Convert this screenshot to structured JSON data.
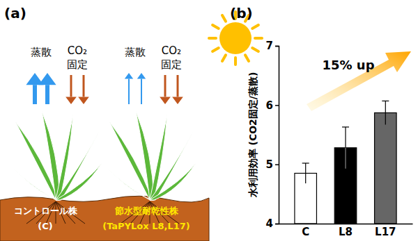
{
  "panel_labels": [
    "(a)",
    "(b)"
  ],
  "diagram": {
    "plants": [
      {
        "label": "コントロール株",
        "sublabel": "(C)",
        "transpiration": "蒸散",
        "co2": "CO₂",
        "fixation": "固定"
      },
      {
        "label": "節水型耐乾性株",
        "sublabel": "(TaPYLox L8,L17)",
        "transpiration": "蒸散",
        "co2": "CO₂",
        "fixation": "固定"
      }
    ]
  },
  "chart_data": {
    "type": "bar",
    "ylabel": "水利用効率 (CO2固定/蒸散)",
    "annotation": "15% up",
    "categories": [
      "C",
      "L8",
      "L17"
    ],
    "values": [
      4.85,
      5.28,
      5.87
    ],
    "errors": [
      0.17,
      0.35,
      0.2
    ],
    "colors": [
      "#ffffff",
      "#000000",
      "#666666"
    ],
    "ylim": [
      4,
      7
    ],
    "yticks": [
      4,
      5,
      6,
      7
    ],
    "grid": false
  }
}
